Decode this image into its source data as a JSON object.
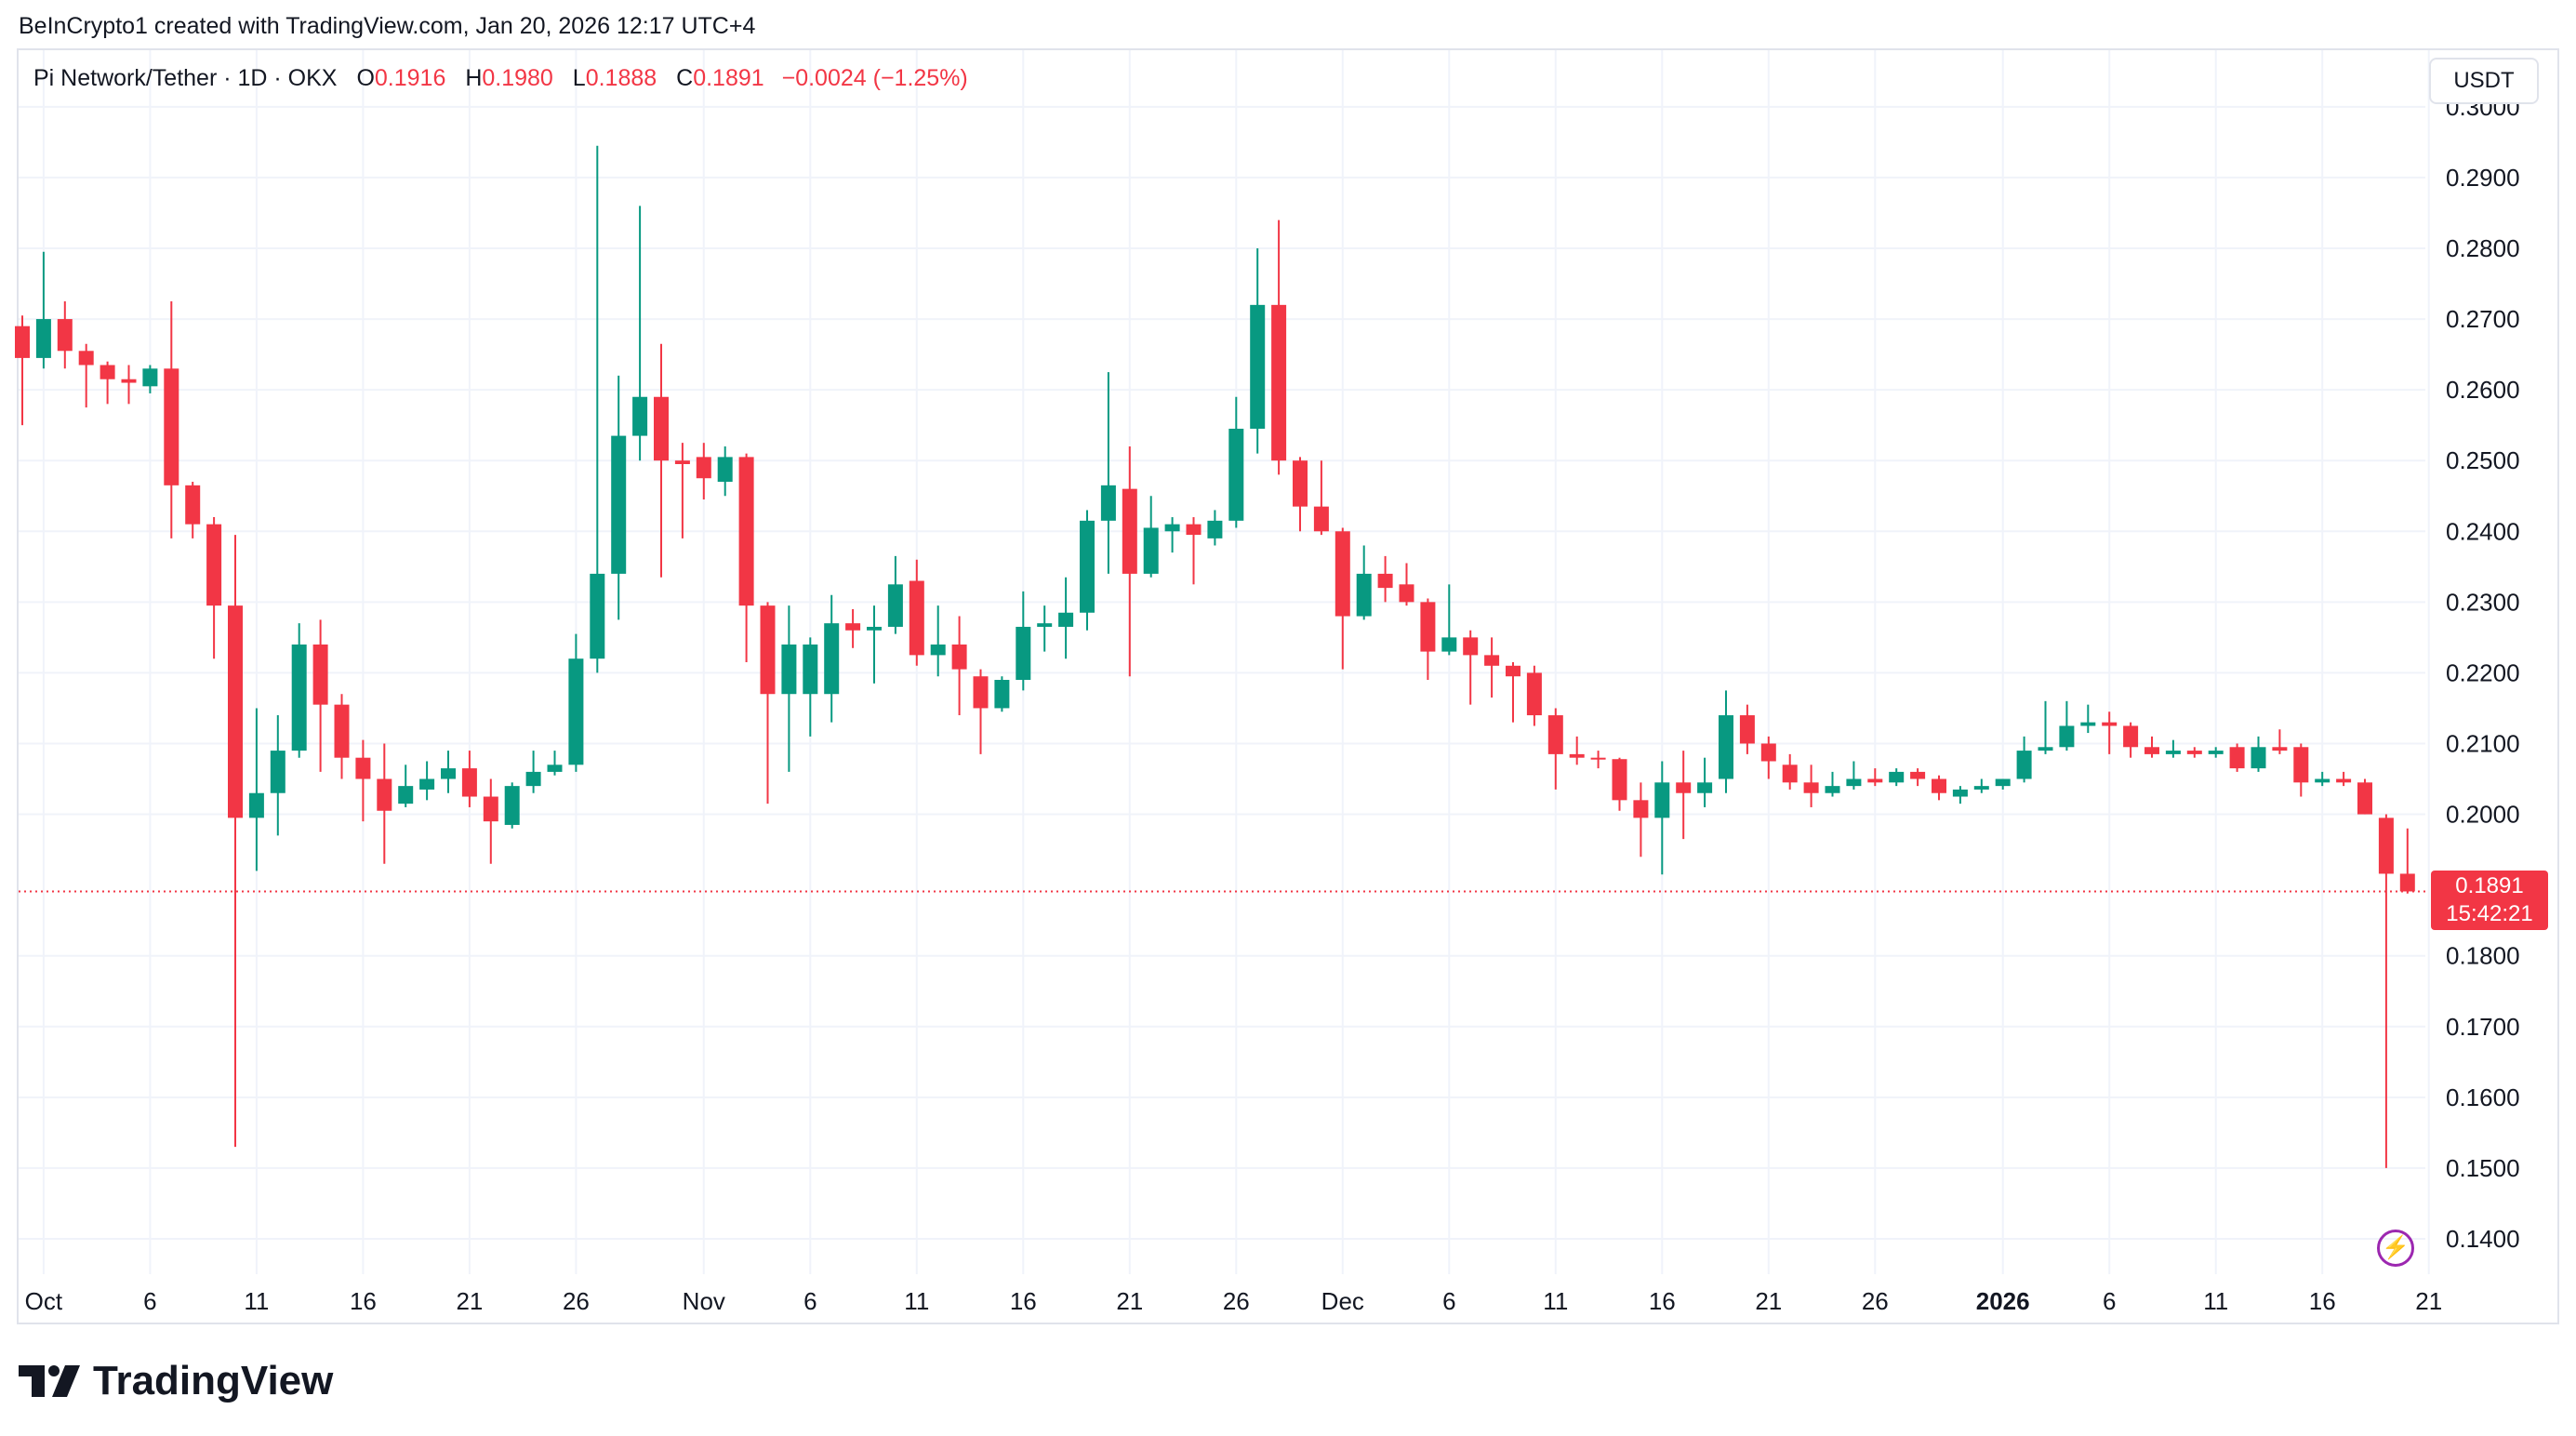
{
  "header": {
    "credit": "BeInCrypto1 created with TradingView.com, Jan 20, 2026 12:17 UTC+4"
  },
  "legend": {
    "symbol": "Pi Network/Tether · 1D · OKX",
    "open_label": "O",
    "open": "0.1916",
    "high_label": "H",
    "high": "0.1980",
    "low_label": "L",
    "low": "0.1888",
    "close_label": "C",
    "close": "0.1891",
    "change": "−0.0024 (−1.25%)"
  },
  "axis": {
    "unit": "USDT",
    "last_price": "0.1891",
    "countdown": "15:42:21"
  },
  "brand": {
    "name": "TradingView"
  },
  "icons": {
    "alert": "flash-icon",
    "logo": "tradingview-logo-icon"
  },
  "colors": {
    "up": "#089981",
    "down": "#f23645",
    "grid": "#f0f3fa",
    "text": "#131722"
  },
  "chart_data": {
    "type": "candlestick",
    "ylim": [
      0.135,
      0.308
    ],
    "y_ticks": [
      "0.3000",
      "0.2900",
      "0.2800",
      "0.2700",
      "0.2600",
      "0.2500",
      "0.2400",
      "0.2300",
      "0.2200",
      "0.2100",
      "0.2000",
      "0.1800",
      "0.1700",
      "0.1600",
      "0.1500",
      "0.1400"
    ],
    "x_ticks": [
      {
        "label": "Oct",
        "index": 1,
        "bold": false
      },
      {
        "label": "6",
        "index": 6,
        "bold": false
      },
      {
        "label": "11",
        "index": 11,
        "bold": false
      },
      {
        "label": "16",
        "index": 16,
        "bold": false
      },
      {
        "label": "21",
        "index": 21,
        "bold": false
      },
      {
        "label": "26",
        "index": 26,
        "bold": false
      },
      {
        "label": "Nov",
        "index": 32,
        "bold": false
      },
      {
        "label": "6",
        "index": 37,
        "bold": false
      },
      {
        "label": "11",
        "index": 42,
        "bold": false
      },
      {
        "label": "16",
        "index": 47,
        "bold": false
      },
      {
        "label": "21",
        "index": 52,
        "bold": false
      },
      {
        "label": "26",
        "index": 57,
        "bold": false
      },
      {
        "label": "Dec",
        "index": 62,
        "bold": false
      },
      {
        "label": "6",
        "index": 67,
        "bold": false
      },
      {
        "label": "11",
        "index": 72,
        "bold": false
      },
      {
        "label": "16",
        "index": 77,
        "bold": false
      },
      {
        "label": "21",
        "index": 82,
        "bold": false
      },
      {
        "label": "26",
        "index": 87,
        "bold": false
      },
      {
        "label": "2026",
        "index": 93,
        "bold": true
      },
      {
        "label": "6",
        "index": 98,
        "bold": false
      },
      {
        "label": "11",
        "index": 103,
        "bold": false
      },
      {
        "label": "16",
        "index": 108,
        "bold": false
      },
      {
        "label": "21",
        "index": 113,
        "bold": false
      }
    ],
    "candles": [
      {
        "date": "2025-09-30",
        "o": 0.269,
        "h": 0.2705,
        "l": 0.255,
        "c": 0.2645
      },
      {
        "date": "2025-10-01",
        "o": 0.2645,
        "h": 0.2795,
        "l": 0.263,
        "c": 0.27
      },
      {
        "date": "2025-10-02",
        "o": 0.27,
        "h": 0.2725,
        "l": 0.263,
        "c": 0.2655
      },
      {
        "date": "2025-10-03",
        "o": 0.2655,
        "h": 0.2665,
        "l": 0.2575,
        "c": 0.2635
      },
      {
        "date": "2025-10-04",
        "o": 0.2635,
        "h": 0.264,
        "l": 0.258,
        "c": 0.2615
      },
      {
        "date": "2025-10-05",
        "o": 0.2615,
        "h": 0.2635,
        "l": 0.258,
        "c": 0.261
      },
      {
        "date": "2025-10-06",
        "o": 0.2605,
        "h": 0.2635,
        "l": 0.2595,
        "c": 0.263
      },
      {
        "date": "2025-10-07",
        "o": 0.263,
        "h": 0.2725,
        "l": 0.239,
        "c": 0.2465
      },
      {
        "date": "2025-10-08",
        "o": 0.2465,
        "h": 0.247,
        "l": 0.239,
        "c": 0.241
      },
      {
        "date": "2025-10-09",
        "o": 0.241,
        "h": 0.242,
        "l": 0.222,
        "c": 0.2295
      },
      {
        "date": "2025-10-10",
        "o": 0.2295,
        "h": 0.2395,
        "l": 0.153,
        "c": 0.1995
      },
      {
        "date": "2025-10-11",
        "o": 0.1995,
        "h": 0.215,
        "l": 0.192,
        "c": 0.203
      },
      {
        "date": "2025-10-12",
        "o": 0.203,
        "h": 0.214,
        "l": 0.197,
        "c": 0.209
      },
      {
        "date": "2025-10-13",
        "o": 0.209,
        "h": 0.227,
        "l": 0.208,
        "c": 0.224
      },
      {
        "date": "2025-10-14",
        "o": 0.224,
        "h": 0.2275,
        "l": 0.206,
        "c": 0.2155
      },
      {
        "date": "2025-10-15",
        "o": 0.2155,
        "h": 0.217,
        "l": 0.205,
        "c": 0.208
      },
      {
        "date": "2025-10-16",
        "o": 0.208,
        "h": 0.2105,
        "l": 0.199,
        "c": 0.205
      },
      {
        "date": "2025-10-17",
        "o": 0.205,
        "h": 0.21,
        "l": 0.193,
        "c": 0.2005
      },
      {
        "date": "2025-10-18",
        "o": 0.2015,
        "h": 0.207,
        "l": 0.201,
        "c": 0.204
      },
      {
        "date": "2025-10-19",
        "o": 0.2035,
        "h": 0.2075,
        "l": 0.202,
        "c": 0.205
      },
      {
        "date": "2025-10-20",
        "o": 0.205,
        "h": 0.209,
        "l": 0.203,
        "c": 0.2065
      },
      {
        "date": "2025-10-21",
        "o": 0.2065,
        "h": 0.209,
        "l": 0.201,
        "c": 0.2025
      },
      {
        "date": "2025-10-22",
        "o": 0.2025,
        "h": 0.205,
        "l": 0.193,
        "c": 0.199
      },
      {
        "date": "2025-10-23",
        "o": 0.1985,
        "h": 0.2045,
        "l": 0.198,
        "c": 0.204
      },
      {
        "date": "2025-10-24",
        "o": 0.204,
        "h": 0.209,
        "l": 0.203,
        "c": 0.206
      },
      {
        "date": "2025-10-25",
        "o": 0.206,
        "h": 0.209,
        "l": 0.2055,
        "c": 0.207
      },
      {
        "date": "2025-10-26",
        "o": 0.207,
        "h": 0.2255,
        "l": 0.206,
        "c": 0.222
      },
      {
        "date": "2025-10-27",
        "o": 0.222,
        "h": 0.2945,
        "l": 0.22,
        "c": 0.234
      },
      {
        "date": "2025-10-28",
        "o": 0.234,
        "h": 0.262,
        "l": 0.2275,
        "c": 0.2535
      },
      {
        "date": "2025-10-29",
        "o": 0.2535,
        "h": 0.286,
        "l": 0.25,
        "c": 0.259
      },
      {
        "date": "2025-10-30",
        "o": 0.259,
        "h": 0.2665,
        "l": 0.2335,
        "c": 0.25
      },
      {
        "date": "2025-10-31",
        "o": 0.25,
        "h": 0.2525,
        "l": 0.239,
        "c": 0.2495
      },
      {
        "date": "2025-11-01",
        "o": 0.2505,
        "h": 0.2525,
        "l": 0.2445,
        "c": 0.2475
      },
      {
        "date": "2025-11-02",
        "o": 0.247,
        "h": 0.252,
        "l": 0.245,
        "c": 0.2505
      },
      {
        "date": "2025-11-03",
        "o": 0.2505,
        "h": 0.251,
        "l": 0.2215,
        "c": 0.2295
      },
      {
        "date": "2025-11-04",
        "o": 0.2295,
        "h": 0.23,
        "l": 0.2015,
        "c": 0.217
      },
      {
        "date": "2025-11-05",
        "o": 0.217,
        "h": 0.2295,
        "l": 0.206,
        "c": 0.224
      },
      {
        "date": "2025-11-06",
        "o": 0.217,
        "h": 0.225,
        "l": 0.211,
        "c": 0.224
      },
      {
        "date": "2025-11-07",
        "o": 0.217,
        "h": 0.231,
        "l": 0.213,
        "c": 0.227
      },
      {
        "date": "2025-11-08",
        "o": 0.227,
        "h": 0.229,
        "l": 0.2235,
        "c": 0.226
      },
      {
        "date": "2025-11-09",
        "o": 0.226,
        "h": 0.2295,
        "l": 0.2185,
        "c": 0.2265
      },
      {
        "date": "2025-11-10",
        "o": 0.2265,
        "h": 0.2365,
        "l": 0.2255,
        "c": 0.2325
      },
      {
        "date": "2025-11-11",
        "o": 0.233,
        "h": 0.236,
        "l": 0.221,
        "c": 0.2225
      },
      {
        "date": "2025-11-12",
        "o": 0.2225,
        "h": 0.2295,
        "l": 0.2195,
        "c": 0.224
      },
      {
        "date": "2025-11-13",
        "o": 0.224,
        "h": 0.228,
        "l": 0.214,
        "c": 0.2205
      },
      {
        "date": "2025-11-14",
        "o": 0.2195,
        "h": 0.2205,
        "l": 0.2085,
        "c": 0.215
      },
      {
        "date": "2025-11-15",
        "o": 0.215,
        "h": 0.2195,
        "l": 0.2145,
        "c": 0.219
      },
      {
        "date": "2025-11-16",
        "o": 0.219,
        "h": 0.2315,
        "l": 0.2175,
        "c": 0.2265
      },
      {
        "date": "2025-11-17",
        "o": 0.2265,
        "h": 0.2295,
        "l": 0.223,
        "c": 0.227
      },
      {
        "date": "2025-11-18",
        "o": 0.2265,
        "h": 0.2335,
        "l": 0.222,
        "c": 0.2285
      },
      {
        "date": "2025-11-19",
        "o": 0.2285,
        "h": 0.243,
        "l": 0.226,
        "c": 0.2415
      },
      {
        "date": "2025-11-20",
        "o": 0.2415,
        "h": 0.2625,
        "l": 0.234,
        "c": 0.2465
      },
      {
        "date": "2025-11-21",
        "o": 0.246,
        "h": 0.252,
        "l": 0.2195,
        "c": 0.234
      },
      {
        "date": "2025-11-22",
        "o": 0.234,
        "h": 0.245,
        "l": 0.2335,
        "c": 0.2405
      },
      {
        "date": "2025-11-23",
        "o": 0.24,
        "h": 0.242,
        "l": 0.237,
        "c": 0.241
      },
      {
        "date": "2025-11-24",
        "o": 0.241,
        "h": 0.242,
        "l": 0.2325,
        "c": 0.2395
      },
      {
        "date": "2025-11-25",
        "o": 0.239,
        "h": 0.243,
        "l": 0.238,
        "c": 0.2415
      },
      {
        "date": "2025-11-26",
        "o": 0.2415,
        "h": 0.259,
        "l": 0.2405,
        "c": 0.2545
      },
      {
        "date": "2025-11-27",
        "o": 0.2545,
        "h": 0.28,
        "l": 0.251,
        "c": 0.272
      },
      {
        "date": "2025-11-28",
        "o": 0.272,
        "h": 0.284,
        "l": 0.248,
        "c": 0.25
      },
      {
        "date": "2025-11-29",
        "o": 0.25,
        "h": 0.2505,
        "l": 0.24,
        "c": 0.2435
      },
      {
        "date": "2025-11-30",
        "o": 0.2435,
        "h": 0.25,
        "l": 0.2395,
        "c": 0.24
      },
      {
        "date": "2025-12-01",
        "o": 0.24,
        "h": 0.2405,
        "l": 0.2205,
        "c": 0.228
      },
      {
        "date": "2025-12-02",
        "o": 0.228,
        "h": 0.238,
        "l": 0.2275,
        "c": 0.234
      },
      {
        "date": "2025-12-03",
        "o": 0.234,
        "h": 0.2365,
        "l": 0.23,
        "c": 0.232
      },
      {
        "date": "2025-12-04",
        "o": 0.2325,
        "h": 0.2355,
        "l": 0.2295,
        "c": 0.23
      },
      {
        "date": "2025-12-05",
        "o": 0.23,
        "h": 0.2305,
        "l": 0.219,
        "c": 0.223
      },
      {
        "date": "2025-12-06",
        "o": 0.223,
        "h": 0.2325,
        "l": 0.2225,
        "c": 0.225
      },
      {
        "date": "2025-12-07",
        "o": 0.225,
        "h": 0.226,
        "l": 0.2155,
        "c": 0.2225
      },
      {
        "date": "2025-12-08",
        "o": 0.2225,
        "h": 0.225,
        "l": 0.2165,
        "c": 0.221
      },
      {
        "date": "2025-12-09",
        "o": 0.221,
        "h": 0.2215,
        "l": 0.213,
        "c": 0.2195
      },
      {
        "date": "2025-12-10",
        "o": 0.22,
        "h": 0.221,
        "l": 0.2125,
        "c": 0.214
      },
      {
        "date": "2025-12-11",
        "o": 0.214,
        "h": 0.215,
        "l": 0.2035,
        "c": 0.2085
      },
      {
        "date": "2025-12-12",
        "o": 0.2085,
        "h": 0.211,
        "l": 0.207,
        "c": 0.208
      },
      {
        "date": "2025-12-13",
        "o": 0.208,
        "h": 0.209,
        "l": 0.2065,
        "c": 0.2078
      },
      {
        "date": "2025-12-14",
        "o": 0.2078,
        "h": 0.208,
        "l": 0.2005,
        "c": 0.202
      },
      {
        "date": "2025-12-15",
        "o": 0.202,
        "h": 0.2045,
        "l": 0.194,
        "c": 0.1995
      },
      {
        "date": "2025-12-16",
        "o": 0.1995,
        "h": 0.2075,
        "l": 0.1915,
        "c": 0.2045
      },
      {
        "date": "2025-12-17",
        "o": 0.2045,
        "h": 0.209,
        "l": 0.1965,
        "c": 0.203
      },
      {
        "date": "2025-12-18",
        "o": 0.203,
        "h": 0.208,
        "l": 0.201,
        "c": 0.2045
      },
      {
        "date": "2025-12-19",
        "o": 0.205,
        "h": 0.2175,
        "l": 0.203,
        "c": 0.214
      },
      {
        "date": "2025-12-20",
        "o": 0.214,
        "h": 0.2155,
        "l": 0.2085,
        "c": 0.21
      },
      {
        "date": "2025-12-21",
        "o": 0.21,
        "h": 0.211,
        "l": 0.205,
        "c": 0.2075
      },
      {
        "date": "2025-12-22",
        "o": 0.207,
        "h": 0.2085,
        "l": 0.2035,
        "c": 0.2045
      },
      {
        "date": "2025-12-23",
        "o": 0.2045,
        "h": 0.207,
        "l": 0.201,
        "c": 0.203
      },
      {
        "date": "2025-12-24",
        "o": 0.203,
        "h": 0.206,
        "l": 0.2025,
        "c": 0.204
      },
      {
        "date": "2025-12-25",
        "o": 0.204,
        "h": 0.2075,
        "l": 0.2035,
        "c": 0.205
      },
      {
        "date": "2025-12-26",
        "o": 0.205,
        "h": 0.2065,
        "l": 0.204,
        "c": 0.2045
      },
      {
        "date": "2025-12-27",
        "o": 0.2045,
        "h": 0.2065,
        "l": 0.204,
        "c": 0.206
      },
      {
        "date": "2025-12-28",
        "o": 0.206,
        "h": 0.2065,
        "l": 0.204,
        "c": 0.205
      },
      {
        "date": "2025-12-29",
        "o": 0.205,
        "h": 0.2055,
        "l": 0.202,
        "c": 0.203
      },
      {
        "date": "2025-12-30",
        "o": 0.2025,
        "h": 0.204,
        "l": 0.2015,
        "c": 0.2035
      },
      {
        "date": "2025-12-31",
        "o": 0.2035,
        "h": 0.205,
        "l": 0.203,
        "c": 0.204
      },
      {
        "date": "2026-01-01",
        "o": 0.204,
        "h": 0.205,
        "l": 0.2035,
        "c": 0.205
      },
      {
        "date": "2026-01-02",
        "o": 0.205,
        "h": 0.211,
        "l": 0.2045,
        "c": 0.209
      },
      {
        "date": "2026-01-03",
        "o": 0.209,
        "h": 0.216,
        "l": 0.2085,
        "c": 0.2095
      },
      {
        "date": "2026-01-04",
        "o": 0.2095,
        "h": 0.216,
        "l": 0.209,
        "c": 0.2125
      },
      {
        "date": "2026-01-05",
        "o": 0.2125,
        "h": 0.2155,
        "l": 0.2115,
        "c": 0.213
      },
      {
        "date": "2026-01-06",
        "o": 0.213,
        "h": 0.2145,
        "l": 0.2085,
        "c": 0.2125
      },
      {
        "date": "2026-01-07",
        "o": 0.2125,
        "h": 0.213,
        "l": 0.208,
        "c": 0.2095
      },
      {
        "date": "2026-01-08",
        "o": 0.2095,
        "h": 0.211,
        "l": 0.208,
        "c": 0.2085
      },
      {
        "date": "2026-01-09",
        "o": 0.2085,
        "h": 0.2105,
        "l": 0.208,
        "c": 0.209
      },
      {
        "date": "2026-01-10",
        "o": 0.209,
        "h": 0.2095,
        "l": 0.208,
        "c": 0.2085
      },
      {
        "date": "2026-01-11",
        "o": 0.2085,
        "h": 0.2095,
        "l": 0.208,
        "c": 0.209
      },
      {
        "date": "2026-01-12",
        "o": 0.2095,
        "h": 0.21,
        "l": 0.206,
        "c": 0.2065
      },
      {
        "date": "2026-01-13",
        "o": 0.2065,
        "h": 0.211,
        "l": 0.206,
        "c": 0.2095
      },
      {
        "date": "2026-01-14",
        "o": 0.2095,
        "h": 0.212,
        "l": 0.2085,
        "c": 0.209
      },
      {
        "date": "2026-01-15",
        "o": 0.2095,
        "h": 0.21,
        "l": 0.2025,
        "c": 0.2045
      },
      {
        "date": "2026-01-16",
        "o": 0.2045,
        "h": 0.206,
        "l": 0.204,
        "c": 0.205
      },
      {
        "date": "2026-01-17",
        "o": 0.205,
        "h": 0.206,
        "l": 0.204,
        "c": 0.2045
      },
      {
        "date": "2026-01-18",
        "o": 0.2045,
        "h": 0.205,
        "l": 0.2,
        "c": 0.2
      },
      {
        "date": "2026-01-19",
        "o": 0.1995,
        "h": 0.2,
        "l": 0.15,
        "c": 0.1916
      },
      {
        "date": "2026-01-20",
        "o": 0.1916,
        "h": 0.198,
        "l": 0.1888,
        "c": 0.1891
      }
    ]
  }
}
